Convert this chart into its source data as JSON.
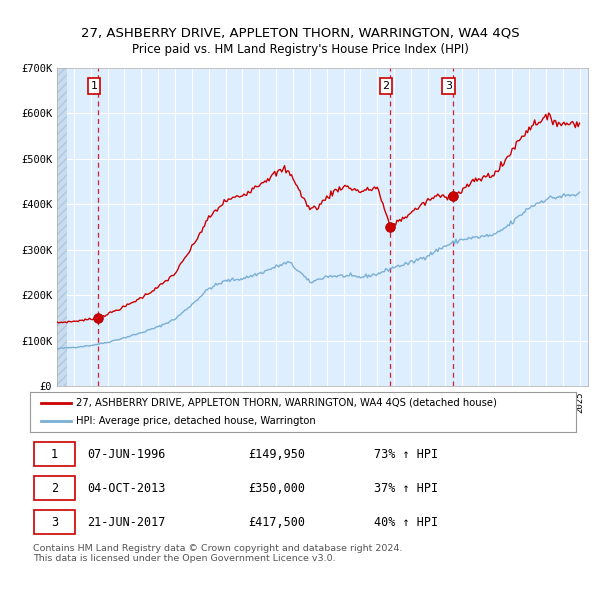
{
  "title1": "27, ASHBERRY DRIVE, APPLETON THORN, WARRINGTON, WA4 4QS",
  "title2": "Price paid vs. HM Land Registry's House Price Index (HPI)",
  "legend_line1": "27, ASHBERRY DRIVE, APPLETON THORN, WARRINGTON, WA4 4QS (detached house)",
  "legend_line2": "HPI: Average price, detached house, Warrington",
  "transactions": [
    {
      "num": 1,
      "date": "07-JUN-1996",
      "price": 149950,
      "hpi_change": "73%",
      "direction": "↑"
    },
    {
      "num": 2,
      "date": "04-OCT-2013",
      "price": 350000,
      "hpi_change": "37%",
      "direction": "↑"
    },
    {
      "num": 3,
      "date": "21-JUN-2017",
      "price": 417500,
      "hpi_change": "40%",
      "direction": "↑"
    }
  ],
  "transaction_dates_decimal": [
    1996.44,
    2013.76,
    2017.47
  ],
  "transaction_prices": [
    149950,
    350000,
    417500
  ],
  "red_line_color": "#cc0000",
  "blue_line_color": "#7bafd4",
  "background_color": "#ddeeff",
  "grid_color": "#ffffff",
  "dashed_color": "#cc0000",
  "ylim": [
    0,
    700000
  ],
  "yticks": [
    0,
    100000,
    200000,
    300000,
    400000,
    500000,
    600000,
    700000
  ],
  "ytick_labels": [
    "£0",
    "£100K",
    "£200K",
    "£300K",
    "£400K",
    "£500K",
    "£600K",
    "£700K"
  ],
  "footnote": "Contains HM Land Registry data © Crown copyright and database right 2024.\nThis data is licensed under the Open Government Licence v3.0.",
  "hpi_anchors": {
    "1994.0": 83000,
    "1995.0": 86000,
    "1996.0": 90000,
    "1997.0": 97000,
    "1998.0": 107000,
    "1999.0": 118000,
    "2000.0": 131000,
    "2001.0": 148000,
    "2002.0": 180000,
    "2003.0": 215000,
    "2004.0": 232000,
    "2005.0": 237000,
    "2006.0": 248000,
    "2007.0": 263000,
    "2007.75": 273000,
    "2008.5": 248000,
    "2009.0": 228000,
    "2010.0": 242000,
    "2011.0": 243000,
    "2012.0": 240000,
    "2013.0": 247000,
    "2014.0": 262000,
    "2015.0": 272000,
    "2016.0": 288000,
    "2017.0": 308000,
    "2018.0": 323000,
    "2019.0": 328000,
    "2020.0": 333000,
    "2021.0": 360000,
    "2022.0": 393000,
    "2023.0": 412000,
    "2024.0": 418000,
    "2025.0": 422000
  },
  "red_anchors": {
    "1994.0": 140000,
    "1995.0": 143000,
    "1996.44": 149950,
    "1998.0": 175000,
    "1999.0": 195000,
    "2000.0": 218000,
    "2001.0": 248000,
    "2002.0": 305000,
    "2003.0": 370000,
    "2004.0": 408000,
    "2005.0": 420000,
    "2006.0": 445000,
    "2007.0": 468000,
    "2007.5": 478000,
    "2008.0": 460000,
    "2008.5": 420000,
    "2009.0": 390000,
    "2009.5": 395000,
    "2010.0": 415000,
    "2010.5": 430000,
    "2011.0": 440000,
    "2011.5": 435000,
    "2012.0": 428000,
    "2012.5": 432000,
    "2013.0": 438000,
    "2013.76": 350000,
    "2014.0": 358000,
    "2014.5": 368000,
    "2015.0": 382000,
    "2015.5": 395000,
    "2016.0": 408000,
    "2016.5": 418000,
    "2017.47": 417500,
    "2018.0": 430000,
    "2018.5": 445000,
    "2019.0": 455000,
    "2019.5": 462000,
    "2020.0": 468000,
    "2020.5": 490000,
    "2021.0": 520000,
    "2021.5": 545000,
    "2022.0": 568000,
    "2022.5": 582000,
    "2023.0": 590000,
    "2023.5": 585000,
    "2024.0": 575000,
    "2024.5": 580000,
    "2025.0": 578000
  }
}
